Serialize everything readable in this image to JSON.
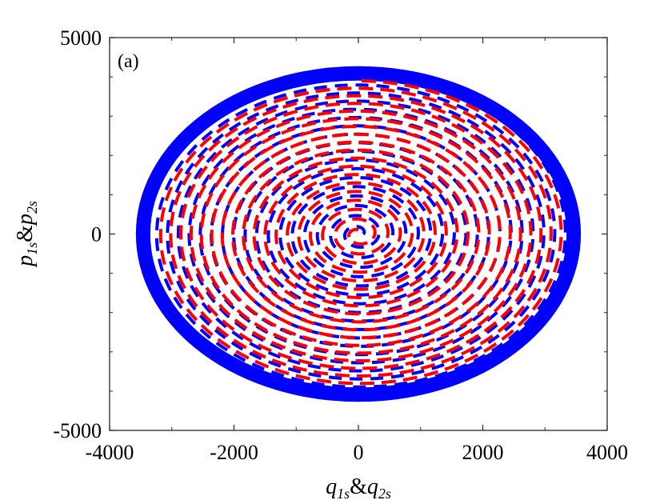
{
  "chart_data": {
    "type": "line",
    "panel_label": "(a)",
    "xlabel": "q1s&q2s",
    "ylabel": "p1s&p2s",
    "xlim": [
      -4000,
      4000
    ],
    "ylim": [
      -5000,
      5000
    ],
    "x_ticks": [
      -4000,
      -2000,
      0,
      2000,
      4000
    ],
    "y_ticks": [
      -5000,
      0,
      5000
    ],
    "x_tick_labels": [
      "-4000",
      "-2000",
      "0",
      "2000",
      "4000"
    ],
    "y_tick_labels": [
      "-5000",
      "0",
      "5000"
    ],
    "grid": false,
    "series": [
      {
        "color": "#0000ff",
        "style": "dashed",
        "shape": "spiral",
        "center": [
          0,
          0
        ],
        "outer_radius": [
          3500,
          4150
        ],
        "inner_radius": [
          80,
          100
        ]
      },
      {
        "color": "#ff0000",
        "style": "dashed",
        "shape": "spiral",
        "center": [
          0,
          0
        ],
        "outer_radius": [
          3300,
          3900
        ],
        "inner_radius": [
          80,
          100
        ]
      }
    ]
  }
}
